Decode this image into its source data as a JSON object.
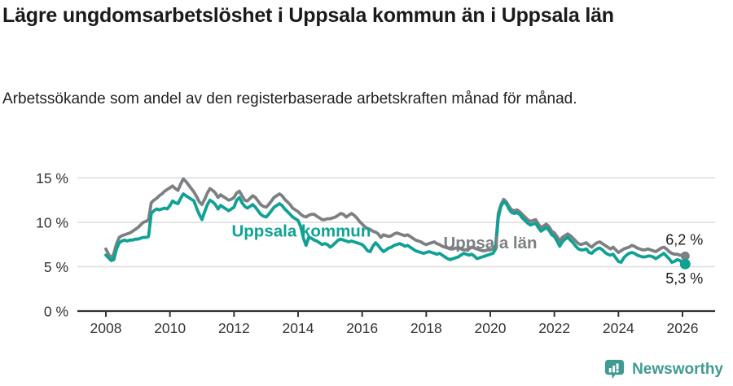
{
  "header": {
    "title": "Lägre ungdomsarbetslöshet i Uppsala kommun än i Uppsala län",
    "subtitle": "Arbetssökande som andel av den registerbaserade arbetskraften månad för månad."
  },
  "footer": {
    "brand": "Newsworthy"
  },
  "colors": {
    "kommun": "#0FA294",
    "lan": "#7C8083",
    "grid": "#DBDBDB",
    "axis": "#333333",
    "tick_text": "#333333",
    "value_label": "#1A1A1A",
    "brand": "#3F9A91"
  },
  "chart_data": {
    "type": "line",
    "unit": "%",
    "frequency": "monthly",
    "x_start": "2008-01",
    "x_end": "2026-02",
    "ylim": [
      0,
      15
    ],
    "yticks": [
      0,
      5,
      10,
      15
    ],
    "ytick_labels": [
      "0 %",
      "5 %",
      "10 %",
      "15 %"
    ],
    "xticks": [
      2008,
      2010,
      2012,
      2014,
      2016,
      2018,
      2020,
      2022,
      2024,
      2026
    ],
    "grid": "horizontal",
    "legend_position": "inline-labels",
    "series": [
      {
        "name": "Uppsala län",
        "color": "#7C8083",
        "end_value": 6.2,
        "end_label": "6,2 %",
        "label_anchor": {
          "year": 2020.0,
          "value": 7.71
        },
        "values": [
          7.0,
          6.4,
          5.9,
          6.5,
          7.6,
          8.3,
          8.5,
          8.6,
          8.7,
          8.8,
          9.0,
          9.2,
          9.4,
          9.7,
          10.0,
          10.1,
          10.3,
          12.2,
          12.5,
          12.7,
          13.0,
          13.2,
          13.5,
          13.7,
          13.9,
          14.1,
          13.8,
          13.6,
          14.3,
          14.9,
          14.6,
          14.2,
          13.8,
          13.4,
          12.9,
          12.3,
          12.0,
          12.6,
          13.3,
          13.8,
          13.6,
          13.3,
          12.8,
          13.1,
          12.9,
          12.7,
          12.5,
          12.6,
          12.8,
          13.3,
          13.5,
          13.0,
          12.5,
          12.4,
          12.7,
          13.0,
          12.8,
          12.4,
          12.0,
          11.8,
          11.7,
          12.0,
          12.4,
          12.8,
          13.0,
          13.2,
          13.0,
          12.6,
          12.3,
          12.0,
          11.6,
          11.4,
          11.2,
          10.9,
          10.7,
          10.6,
          10.8,
          10.9,
          10.9,
          10.7,
          10.5,
          10.3,
          10.3,
          10.4,
          10.4,
          10.5,
          10.6,
          10.8,
          11.0,
          10.9,
          10.6,
          10.8,
          11.0,
          10.8,
          10.5,
          10.1,
          9.8,
          9.5,
          9.3,
          9.2,
          9.0,
          8.9,
          8.7,
          8.3,
          8.6,
          8.5,
          8.4,
          8.5,
          8.7,
          8.8,
          8.7,
          8.6,
          8.5,
          8.6,
          8.4,
          8.2,
          8.0,
          7.9,
          7.8,
          7.6,
          7.5,
          7.6,
          7.7,
          7.8,
          7.6,
          7.5,
          7.3,
          7.2,
          7.1,
          7.0,
          7.0,
          7.1,
          7.1,
          7.0,
          6.9,
          6.9,
          7.0,
          7.2,
          7.1,
          7.0,
          6.9,
          6.8,
          6.8,
          6.9,
          6.9,
          7.0,
          7.4,
          11.0,
          12.0,
          12.6,
          12.3,
          11.8,
          11.4,
          11.3,
          11.4,
          11.2,
          10.9,
          10.6,
          10.3,
          10.1,
          10.2,
          10.3,
          9.8,
          9.4,
          9.6,
          9.8,
          9.5,
          9.0,
          8.8,
          8.4,
          7.9,
          8.3,
          8.5,
          8.7,
          8.5,
          8.2,
          7.9,
          7.6,
          7.5,
          7.6,
          7.7,
          7.4,
          7.2,
          7.5,
          7.7,
          7.8,
          7.6,
          7.4,
          7.2,
          7.0,
          7.2,
          6.9,
          6.6,
          6.8,
          7.0,
          7.1,
          7.2,
          7.4,
          7.3,
          7.1,
          7.0,
          6.9,
          6.9,
          7.0,
          6.9,
          6.8,
          6.7,
          6.9,
          7.1,
          7.2,
          7.0,
          6.7,
          6.5,
          6.4,
          6.4,
          6.3,
          6.3,
          6.2
        ]
      },
      {
        "name": "Uppsala kommun",
        "color": "#0FA294",
        "end_value": 5.3,
        "end_label": "5,3 %",
        "label_anchor": {
          "year": 2014.1,
          "value": 9.04
        },
        "values": [
          6.3,
          6.0,
          5.7,
          5.8,
          7.0,
          7.7,
          7.9,
          8.0,
          7.9,
          8.0,
          8.0,
          8.1,
          8.1,
          8.2,
          8.3,
          8.3,
          8.4,
          11.0,
          11.3,
          11.5,
          11.4,
          11.5,
          11.6,
          11.5,
          11.9,
          12.4,
          12.2,
          12.1,
          12.7,
          13.2,
          13.0,
          12.8,
          12.6,
          12.4,
          11.6,
          10.9,
          10.3,
          11.2,
          12.0,
          12.5,
          12.3,
          12.0,
          11.5,
          11.9,
          11.7,
          11.5,
          11.3,
          11.5,
          11.7,
          12.5,
          12.8,
          12.2,
          11.8,
          11.6,
          11.8,
          12.0,
          11.7,
          11.3,
          10.9,
          10.7,
          10.6,
          10.9,
          11.3,
          11.7,
          11.9,
          12.1,
          11.9,
          11.5,
          11.2,
          10.9,
          10.6,
          10.4,
          10.2,
          9.5,
          8.2,
          7.4,
          8.3,
          8.2,
          8.0,
          7.9,
          7.7,
          7.5,
          7.6,
          7.5,
          7.2,
          7.4,
          7.7,
          8.0,
          8.1,
          8.0,
          7.9,
          7.8,
          7.9,
          7.8,
          7.7,
          7.6,
          7.5,
          7.2,
          6.8,
          6.7,
          7.3,
          7.7,
          7.4,
          7.0,
          6.7,
          6.9,
          7.1,
          7.2,
          7.4,
          7.5,
          7.6,
          7.5,
          7.3,
          7.4,
          7.2,
          7.0,
          6.8,
          6.7,
          6.6,
          6.5,
          6.6,
          6.7,
          6.6,
          6.5,
          6.4,
          6.5,
          6.3,
          6.1,
          5.9,
          5.8,
          5.9,
          6.0,
          6.1,
          6.3,
          6.5,
          6.4,
          6.3,
          6.4,
          6.2,
          5.9,
          6.0,
          6.1,
          6.2,
          6.3,
          6.4,
          6.5,
          7.0,
          10.5,
          11.8,
          12.3,
          12.1,
          11.5,
          11.1,
          11.0,
          11.1,
          10.9,
          10.5,
          10.2,
          9.9,
          9.7,
          9.8,
          9.9,
          9.4,
          9.0,
          9.2,
          9.4,
          9.1,
          8.6,
          8.4,
          7.9,
          7.3,
          7.8,
          8.1,
          8.3,
          8.0,
          7.7,
          7.3,
          7.0,
          6.9,
          6.9,
          7.0,
          6.6,
          6.5,
          6.8,
          7.0,
          7.1,
          6.9,
          6.6,
          6.4,
          6.3,
          6.4,
          6.0,
          5.6,
          5.5,
          6.0,
          6.3,
          6.5,
          6.6,
          6.5,
          6.3,
          6.2,
          6.1,
          6.1,
          6.2,
          6.2,
          6.1,
          5.9,
          6.1,
          6.3,
          6.5,
          6.2,
          5.9,
          5.5,
          5.6,
          5.8,
          5.7,
          5.5,
          5.3
        ]
      }
    ]
  }
}
